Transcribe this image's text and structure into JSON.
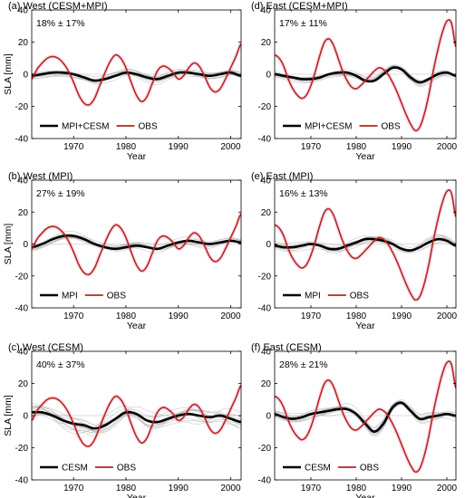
{
  "figure": {
    "panels": [
      {
        "id": "a",
        "title": "(a) West (CESM+MPI)",
        "annotation": "18% ± 17%",
        "ylabel": "SLA [mm]",
        "xlabel": "Year",
        "legend": [
          "MPI+CESM",
          "OBS"
        ],
        "legend_position": "lower-left",
        "ens_members": 12,
        "ens_spread": 3.0
      },
      {
        "id": "d",
        "title": "(d) East (CESM+MPI)",
        "annotation": "17% ± 11%",
        "ylabel": "",
        "xlabel": "Year",
        "legend": [
          "MPI+CESM",
          "OBS"
        ],
        "legend_position": "lower-left",
        "ens_members": 12,
        "ens_spread": 2.5
      },
      {
        "id": "b",
        "title": "(b) West (MPI)",
        "annotation": "27% ± 19%",
        "ylabel": "SLA [mm]",
        "xlabel": "Year",
        "legend": [
          "MPI",
          "OBS"
        ],
        "legend_position": "lower-left",
        "ens_members": 12,
        "ens_spread": 2.5
      },
      {
        "id": "e",
        "title": "(e) East (MPI)",
        "annotation": "16% ± 13%",
        "ylabel": "",
        "xlabel": "Year",
        "legend": [
          "MPI",
          "OBS"
        ],
        "legend_position": "lower-left",
        "ens_members": 12,
        "ens_spread": 3.0
      },
      {
        "id": "c",
        "title": "(c) West (CESM)",
        "annotation": "40% ± 37%",
        "ylabel": "SLA [mm]",
        "xlabel": "Year",
        "legend": [
          "CESM",
          "OBS"
        ],
        "legend_position": "lower-left",
        "ens_members": 14,
        "ens_spread": 5.0
      },
      {
        "id": "f",
        "title": "(f) East (CESM)",
        "annotation": "28% ± 21%",
        "ylabel": "",
        "xlabel": "Year",
        "legend": [
          "CESM",
          "OBS"
        ],
        "legend_position": "lower-left",
        "ens_members": 14,
        "ens_spread": 3.0
      }
    ]
  },
  "chart_data": [
    {
      "type": "line",
      "panel": "a",
      "title": "(a) West (CESM+MPI)",
      "xlabel": "Year",
      "ylabel": "SLA [mm]",
      "xlim": [
        1962,
        2002
      ],
      "ylim": [
        -40,
        40
      ],
      "xticks": [
        1970,
        1980,
        1990,
        2000
      ],
      "yticks": [
        -40,
        -20,
        0,
        20,
        40
      ],
      "series": [
        {
          "name": "MPI+CESM",
          "x": [
            1962,
            1964,
            1966,
            1968,
            1970,
            1972,
            1974,
            1976,
            1978,
            1980,
            1982,
            1984,
            1986,
            1988,
            1990,
            1992,
            1994,
            1996,
            1998,
            2000,
            2002
          ],
          "y": [
            -1,
            0,
            1,
            1,
            0,
            -2,
            -4,
            -3,
            -1,
            1,
            0,
            -2,
            -3,
            -1,
            1,
            1,
            0,
            -1,
            0,
            1,
            -1
          ]
        },
        {
          "name": "OBS",
          "x": [
            1962,
            1963,
            1964,
            1965,
            1966,
            1967,
            1968,
            1969,
            1970,
            1971,
            1972,
            1973,
            1974,
            1975,
            1976,
            1977,
            1978,
            1979,
            1980,
            1981,
            1982,
            1983,
            1984,
            1985,
            1986,
            1987,
            1988,
            1989,
            1990,
            1991,
            1992,
            1993,
            1994,
            1995,
            1996,
            1997,
            1998,
            1999,
            2000,
            2001,
            2002
          ],
          "y": [
            -3,
            3,
            7,
            10,
            11,
            10,
            7,
            2,
            -5,
            -13,
            -18,
            -19,
            -15,
            -7,
            1,
            8,
            12,
            10,
            4,
            -5,
            -13,
            -17,
            -14,
            -6,
            2,
            5,
            4,
            1,
            -3,
            -1,
            4,
            7,
            5,
            -1,
            -8,
            -11,
            -9,
            -3,
            4,
            11,
            19
          ]
        }
      ]
    },
    {
      "type": "line",
      "panel": "d",
      "title": "(d) East (CESM+MPI)",
      "xlabel": "Year",
      "ylabel": "",
      "xlim": [
        1962,
        2002
      ],
      "ylim": [
        -40,
        40
      ],
      "xticks": [
        1970,
        1980,
        1990,
        2000
      ],
      "yticks": [
        -40,
        -20,
        0,
        20,
        40
      ],
      "series": [
        {
          "name": "MPI+CESM",
          "x": [
            1962,
            1964,
            1966,
            1968,
            1970,
            1972,
            1974,
            1976,
            1978,
            1980,
            1982,
            1984,
            1986,
            1988,
            1990,
            1992,
            1994,
            1996,
            1998,
            2000,
            2002
          ],
          "y": [
            0,
            -1,
            -2,
            -3,
            -3,
            -2,
            0,
            1,
            1,
            -1,
            -4,
            -4,
            0,
            4,
            3,
            -2,
            -5,
            -3,
            0,
            1,
            -1
          ]
        },
        {
          "name": "OBS",
          "x": [
            1962,
            1963,
            1964,
            1965,
            1966,
            1967,
            1968,
            1969,
            1970,
            1971,
            1972,
            1973,
            1974,
            1975,
            1976,
            1977,
            1978,
            1979,
            1980,
            1981,
            1982,
            1983,
            1984,
            1985,
            1986,
            1987,
            1988,
            1989,
            1990,
            1991,
            1992,
            1993,
            1994,
            1995,
            1996,
            1997,
            1998,
            1999,
            2000,
            2001,
            2002
          ],
          "y": [
            12,
            10,
            5,
            -3,
            -9,
            -13,
            -15,
            -13,
            -7,
            2,
            12,
            20,
            22,
            18,
            10,
            2,
            -4,
            -8,
            -9,
            -7,
            -4,
            -1,
            2,
            4,
            3,
            0,
            -5,
            -11,
            -18,
            -25,
            -31,
            -35,
            -33,
            -25,
            -13,
            2,
            15,
            26,
            33,
            32,
            17
          ]
        }
      ]
    },
    {
      "type": "line",
      "panel": "b",
      "title": "(b) West (MPI)",
      "xlabel": "Year",
      "ylabel": "SLA [mm]",
      "xlim": [
        1962,
        2002
      ],
      "ylim": [
        -40,
        40
      ],
      "xticks": [
        1970,
        1980,
        1990,
        2000
      ],
      "yticks": [
        -40,
        -20,
        0,
        20,
        40
      ],
      "series": [
        {
          "name": "MPI",
          "x": [
            1962,
            1964,
            1966,
            1968,
            1970,
            1972,
            1974,
            1976,
            1978,
            1980,
            1982,
            1984,
            1986,
            1988,
            1990,
            1992,
            1994,
            1996,
            1998,
            2000,
            2002
          ],
          "y": [
            -2,
            0,
            3,
            5,
            5,
            3,
            0,
            -2,
            -3,
            -2,
            -1,
            -2,
            -3,
            -1,
            1,
            2,
            1,
            0,
            1,
            2,
            1
          ]
        },
        {
          "name": "OBS",
          "x": [
            1962,
            1963,
            1964,
            1965,
            1966,
            1967,
            1968,
            1969,
            1970,
            1971,
            1972,
            1973,
            1974,
            1975,
            1976,
            1977,
            1978,
            1979,
            1980,
            1981,
            1982,
            1983,
            1984,
            1985,
            1986,
            1987,
            1988,
            1989,
            1990,
            1991,
            1992,
            1993,
            1994,
            1995,
            1996,
            1997,
            1998,
            1999,
            2000,
            2001,
            2002
          ],
          "y": [
            -3,
            3,
            7,
            10,
            11,
            10,
            7,
            2,
            -5,
            -13,
            -18,
            -19,
            -15,
            -7,
            1,
            8,
            12,
            10,
            4,
            -5,
            -13,
            -17,
            -14,
            -6,
            2,
            5,
            4,
            1,
            -3,
            -1,
            4,
            7,
            5,
            -1,
            -8,
            -11,
            -9,
            -3,
            4,
            11,
            19
          ]
        }
      ]
    },
    {
      "type": "line",
      "panel": "e",
      "title": "(e) East (MPI)",
      "xlabel": "Year",
      "ylabel": "",
      "xlim": [
        1962,
        2002
      ],
      "ylim": [
        -40,
        40
      ],
      "xticks": [
        1970,
        1980,
        1990,
        2000
      ],
      "yticks": [
        -40,
        -20,
        0,
        20,
        40
      ],
      "series": [
        {
          "name": "MPI",
          "x": [
            1962,
            1964,
            1966,
            1968,
            1970,
            1972,
            1974,
            1976,
            1978,
            1980,
            1982,
            1984,
            1986,
            1988,
            1990,
            1992,
            1994,
            1996,
            1998,
            2000,
            2002
          ],
          "y": [
            -1,
            -2,
            -2,
            -1,
            0,
            -1,
            -3,
            -3,
            -1,
            1,
            3,
            3,
            2,
            0,
            -3,
            -4,
            -2,
            1,
            3,
            2,
            -1
          ]
        },
        {
          "name": "OBS",
          "x": [
            1962,
            1963,
            1964,
            1965,
            1966,
            1967,
            1968,
            1969,
            1970,
            1971,
            1972,
            1973,
            1974,
            1975,
            1976,
            1977,
            1978,
            1979,
            1980,
            1981,
            1982,
            1983,
            1984,
            1985,
            1986,
            1987,
            1988,
            1989,
            1990,
            1991,
            1992,
            1993,
            1994,
            1995,
            1996,
            1997,
            1998,
            1999,
            2000,
            2001,
            2002
          ],
          "y": [
            12,
            10,
            5,
            -3,
            -9,
            -13,
            -15,
            -13,
            -7,
            2,
            12,
            20,
            22,
            18,
            10,
            2,
            -4,
            -8,
            -9,
            -7,
            -4,
            -1,
            2,
            4,
            3,
            0,
            -5,
            -11,
            -18,
            -25,
            -31,
            -35,
            -33,
            -25,
            -13,
            2,
            15,
            26,
            33,
            32,
            17
          ]
        }
      ]
    },
    {
      "type": "line",
      "panel": "c",
      "title": "(c) West (CESM)",
      "xlabel": "Year",
      "ylabel": "SLA [mm]",
      "xlim": [
        1962,
        2002
      ],
      "ylim": [
        -40,
        40
      ],
      "xticks": [
        1970,
        1980,
        1990,
        2000
      ],
      "yticks": [
        -40,
        -20,
        0,
        20,
        40
      ],
      "series": [
        {
          "name": "CESM",
          "x": [
            1962,
            1964,
            1966,
            1968,
            1970,
            1972,
            1974,
            1976,
            1978,
            1980,
            1982,
            1984,
            1986,
            1988,
            1990,
            1992,
            1994,
            1996,
            1998,
            2000,
            2002
          ],
          "y": [
            2,
            2,
            0,
            -3,
            -5,
            -6,
            -8,
            -6,
            -2,
            2,
            1,
            -3,
            -4,
            -2,
            0,
            1,
            0,
            -1,
            0,
            -2,
            -4
          ]
        },
        {
          "name": "OBS",
          "x": [
            1962,
            1963,
            1964,
            1965,
            1966,
            1967,
            1968,
            1969,
            1970,
            1971,
            1972,
            1973,
            1974,
            1975,
            1976,
            1977,
            1978,
            1979,
            1980,
            1981,
            1982,
            1983,
            1984,
            1985,
            1986,
            1987,
            1988,
            1989,
            1990,
            1991,
            1992,
            1993,
            1994,
            1995,
            1996,
            1997,
            1998,
            1999,
            2000,
            2001,
            2002
          ],
          "y": [
            -3,
            3,
            7,
            10,
            11,
            10,
            7,
            2,
            -5,
            -13,
            -18,
            -19,
            -15,
            -7,
            1,
            8,
            12,
            10,
            4,
            -5,
            -13,
            -17,
            -14,
            -6,
            2,
            5,
            4,
            1,
            -3,
            -1,
            4,
            7,
            5,
            -1,
            -8,
            -11,
            -9,
            -3,
            4,
            11,
            19
          ]
        }
      ]
    },
    {
      "type": "line",
      "panel": "f",
      "title": "(f) East (CESM)",
      "xlabel": "Year",
      "ylabel": "",
      "xlim": [
        1962,
        2002
      ],
      "ylim": [
        -40,
        40
      ],
      "xticks": [
        1970,
        1980,
        1990,
        2000
      ],
      "yticks": [
        -40,
        -20,
        0,
        20,
        40
      ],
      "series": [
        {
          "name": "CESM",
          "x": [
            1962,
            1964,
            1966,
            1968,
            1970,
            1972,
            1974,
            1976,
            1978,
            1980,
            1982,
            1984,
            1986,
            1988,
            1990,
            1992,
            1994,
            1996,
            1998,
            2000,
            2002
          ],
          "y": [
            1,
            -1,
            -2,
            -1,
            1,
            2,
            3,
            4,
            4,
            1,
            -5,
            -10,
            -5,
            5,
            8,
            3,
            -2,
            -1,
            0,
            1,
            0
          ]
        },
        {
          "name": "OBS",
          "x": [
            1962,
            1963,
            1964,
            1965,
            1966,
            1967,
            1968,
            1969,
            1970,
            1971,
            1972,
            1973,
            1974,
            1975,
            1976,
            1977,
            1978,
            1979,
            1980,
            1981,
            1982,
            1983,
            1984,
            1985,
            1986,
            1987,
            1988,
            1989,
            1990,
            1991,
            1992,
            1993,
            1994,
            1995,
            1996,
            1997,
            1998,
            1999,
            2000,
            2001,
            2002
          ],
          "y": [
            12,
            10,
            5,
            -3,
            -9,
            -13,
            -15,
            -13,
            -7,
            2,
            12,
            20,
            22,
            18,
            10,
            2,
            -4,
            -8,
            -9,
            -7,
            -4,
            -1,
            2,
            4,
            3,
            0,
            -5,
            -11,
            -18,
            -25,
            -31,
            -35,
            -33,
            -25,
            -13,
            2,
            15,
            26,
            33,
            32,
            17
          ]
        }
      ]
    }
  ],
  "colors": {
    "mean": "#000000",
    "obs": "#b5261e",
    "obs_halo": "#f08ab6",
    "ensemble": "#a8a8a8"
  }
}
